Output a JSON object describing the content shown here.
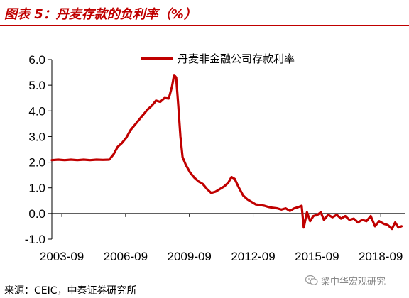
{
  "figure": {
    "title": "图表 5：丹麦存款的负利率（%）",
    "source": "来源：CEIC，中泰证券研究所",
    "watermark": "梁中华宏观研究"
  },
  "colors": {
    "accent": "#c00000",
    "series": "#c00000",
    "axis": "#000000"
  },
  "chart_data": {
    "type": "line",
    "title": "",
    "xlabel": "",
    "ylabel": "",
    "ylim": [
      -1.0,
      6.0
    ],
    "yticks": [
      -1.0,
      0.0,
      1.0,
      2.0,
      3.0,
      4.0,
      5.0,
      6.0
    ],
    "ytick_labels": [
      "-1.0",
      "0.0",
      "1.0",
      "2.0",
      "3.0",
      "4.0",
      "5.0",
      "6.0"
    ],
    "xlim": [
      2003.2,
      2019.8
    ],
    "xticks": [
      2003.67,
      2006.67,
      2009.67,
      2012.67,
      2015.67,
      2018.67
    ],
    "xtick_labels": [
      "2003-09",
      "2006-09",
      "2009-09",
      "2012-09",
      "2015-09",
      "2018-09"
    ],
    "grid": false,
    "legend": "top-center",
    "series": [
      {
        "name": "丹麦非金融公司存款利率",
        "points": [
          [
            2003.2,
            2.08
          ],
          [
            2003.5,
            2.1
          ],
          [
            2003.8,
            2.08
          ],
          [
            2004.1,
            2.1
          ],
          [
            2004.4,
            2.08
          ],
          [
            2004.7,
            2.1
          ],
          [
            2005.0,
            2.08
          ],
          [
            2005.3,
            2.1
          ],
          [
            2005.6,
            2.09
          ],
          [
            2005.9,
            2.1
          ],
          [
            2006.1,
            2.3
          ],
          [
            2006.3,
            2.6
          ],
          [
            2006.5,
            2.75
          ],
          [
            2006.7,
            2.95
          ],
          [
            2006.9,
            3.25
          ],
          [
            2007.1,
            3.45
          ],
          [
            2007.3,
            3.65
          ],
          [
            2007.5,
            3.85
          ],
          [
            2007.7,
            4.05
          ],
          [
            2007.9,
            4.2
          ],
          [
            2008.1,
            4.4
          ],
          [
            2008.3,
            4.35
          ],
          [
            2008.5,
            4.5
          ],
          [
            2008.7,
            4.48
          ],
          [
            2008.85,
            4.95
          ],
          [
            2008.95,
            5.4
          ],
          [
            2009.05,
            5.3
          ],
          [
            2009.15,
            4.2
          ],
          [
            2009.25,
            3.0
          ],
          [
            2009.35,
            2.2
          ],
          [
            2009.5,
            1.9
          ],
          [
            2009.7,
            1.6
          ],
          [
            2009.9,
            1.4
          ],
          [
            2010.1,
            1.25
          ],
          [
            2010.3,
            1.15
          ],
          [
            2010.5,
            0.95
          ],
          [
            2010.7,
            0.8
          ],
          [
            2010.9,
            0.85
          ],
          [
            2011.1,
            0.95
          ],
          [
            2011.3,
            1.05
          ],
          [
            2011.5,
            1.2
          ],
          [
            2011.65,
            1.42
          ],
          [
            2011.8,
            1.35
          ],
          [
            2012.0,
            1.0
          ],
          [
            2012.2,
            0.7
          ],
          [
            2012.4,
            0.55
          ],
          [
            2012.6,
            0.45
          ],
          [
            2012.8,
            0.35
          ],
          [
            2013.0,
            0.33
          ],
          [
            2013.2,
            0.3
          ],
          [
            2013.4,
            0.25
          ],
          [
            2013.6,
            0.22
          ],
          [
            2013.8,
            0.2
          ],
          [
            2014.0,
            0.15
          ],
          [
            2014.2,
            0.2
          ],
          [
            2014.4,
            0.1
          ],
          [
            2014.6,
            0.2
          ],
          [
            2014.8,
            0.25
          ],
          [
            2014.95,
            0.3
          ],
          [
            2015.05,
            -0.55
          ],
          [
            2015.2,
            0.05
          ],
          [
            2015.35,
            -0.3
          ],
          [
            2015.5,
            -0.1
          ],
          [
            2015.7,
            -0.05
          ],
          [
            2015.85,
            0.05
          ],
          [
            2016.0,
            -0.25
          ],
          [
            2016.2,
            -0.05
          ],
          [
            2016.4,
            -0.15
          ],
          [
            2016.6,
            -0.05
          ],
          [
            2016.8,
            -0.2
          ],
          [
            2017.0,
            -0.1
          ],
          [
            2017.2,
            -0.25
          ],
          [
            2017.4,
            -0.2
          ],
          [
            2017.6,
            -0.35
          ],
          [
            2017.8,
            -0.25
          ],
          [
            2018.0,
            -0.3
          ],
          [
            2018.2,
            -0.1
          ],
          [
            2018.4,
            -0.5
          ],
          [
            2018.6,
            -0.3
          ],
          [
            2018.8,
            -0.4
          ],
          [
            2019.0,
            -0.45
          ],
          [
            2019.2,
            -0.6
          ],
          [
            2019.35,
            -0.35
          ],
          [
            2019.5,
            -0.55
          ],
          [
            2019.65,
            -0.5
          ]
        ]
      }
    ]
  }
}
